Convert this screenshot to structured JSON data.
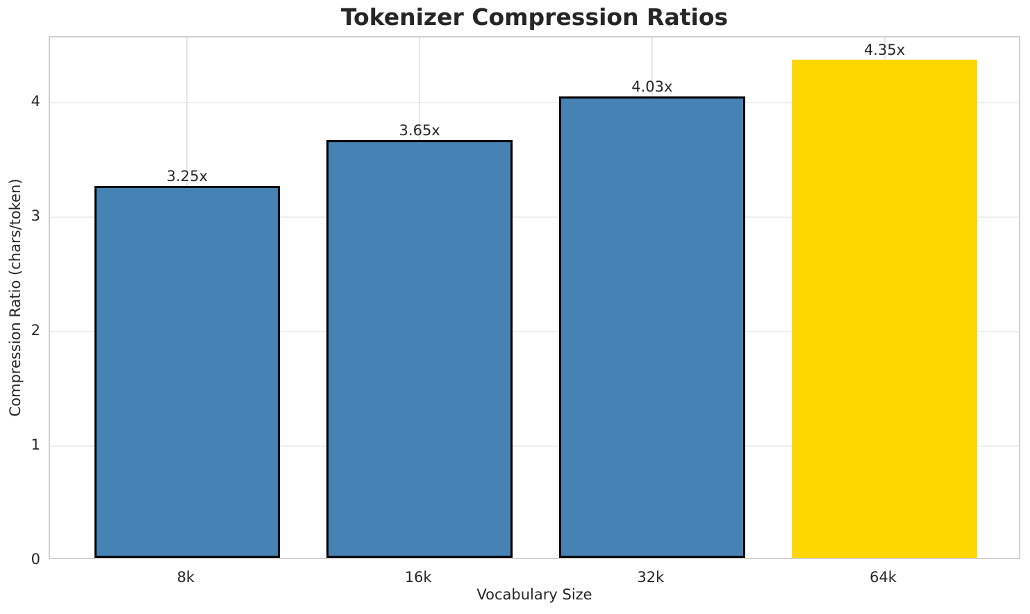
{
  "chart_data": {
    "type": "bar",
    "title": "Tokenizer Compression Ratios",
    "xlabel": "Vocabulary Size",
    "ylabel": "Compression Ratio (chars/token)",
    "categories": [
      "8k",
      "16k",
      "32k",
      "64k"
    ],
    "values": [
      3.25,
      3.65,
      4.03,
      4.35
    ],
    "value_labels": [
      "3.25x",
      "3.65x",
      "4.03x",
      "4.35x"
    ],
    "bar_colors": [
      "#4682B4",
      "#4682B4",
      "#4682B4",
      "#FFD700"
    ],
    "bar_edge_colors": [
      "#000000",
      "#000000",
      "#000000",
      "none"
    ],
    "yticks": [
      0,
      1,
      2,
      3,
      4
    ],
    "ytick_labels": [
      "0",
      "1",
      "2",
      "3",
      "4"
    ],
    "ylim": [
      0,
      4.57
    ],
    "xlim": [
      -0.59,
      3.59
    ],
    "bar_width": 0.8,
    "grid": true,
    "legend": "none",
    "highlight_index": 3,
    "colors": {
      "bar_default": "#4682B4",
      "bar_highlight": "#FFD700",
      "bar_edge": "#000000",
      "text": "#262626",
      "grid_h": "#efefef",
      "grid_v": "#e6e6e6",
      "spine": "#d0d0d0",
      "background": "#ffffff"
    }
  }
}
